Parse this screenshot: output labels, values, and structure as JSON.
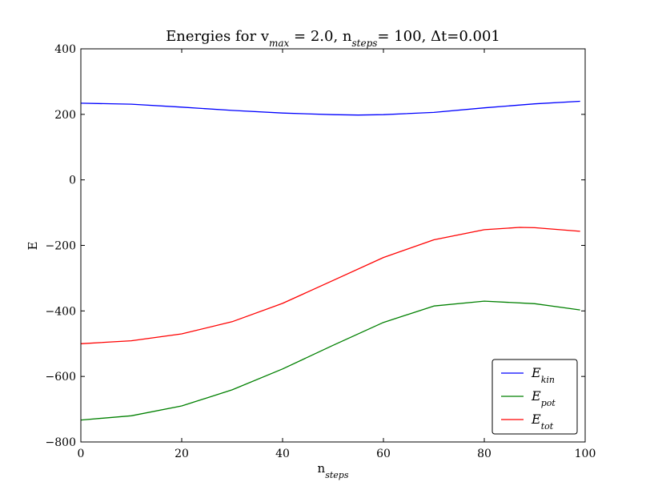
{
  "chart_data": {
    "type": "line",
    "title_parts": [
      {
        "text": "Energies for v",
        "sub": false
      },
      {
        "text": "max",
        "sub": true
      },
      {
        "text": " = 2.0, n",
        "sub": false
      },
      {
        "text": "steps",
        "sub": true
      },
      {
        "text": "= 100, Δt=0.001",
        "sub": false
      }
    ],
    "xlabel": {
      "main": "n",
      "sub": "steps"
    },
    "ylabel": "E",
    "xlim": [
      0,
      100
    ],
    "ylim": [
      -800,
      400
    ],
    "xticks": [
      0,
      20,
      40,
      60,
      80,
      100
    ],
    "yticks": [
      -800,
      -600,
      -400,
      -200,
      0,
      200,
      400
    ],
    "grid": false,
    "legend_position": "bottom-right",
    "series": [
      {
        "name": "E_kin",
        "legend": {
          "main": "E",
          "sub": "kin"
        },
        "color": "#0000ff",
        "x": [
          0,
          10,
          20,
          30,
          40,
          50,
          55,
          60,
          70,
          80,
          90,
          99
        ],
        "y": [
          234,
          231,
          222,
          212,
          204,
          199,
          198,
          199,
          206,
          220,
          232,
          240
        ]
      },
      {
        "name": "E_pot",
        "legend": {
          "main": "E",
          "sub": "pot"
        },
        "color": "#008000",
        "x": [
          0,
          10,
          20,
          30,
          40,
          50,
          60,
          70,
          80,
          90,
          99
        ],
        "y": [
          -733,
          -720,
          -690,
          -641,
          -577,
          -505,
          -435,
          -385,
          -370,
          -378,
          -397
        ]
      },
      {
        "name": "E_tot",
        "legend": {
          "main": "E",
          "sub": "tot"
        },
        "color": "#ff0000",
        "x": [
          0,
          10,
          20,
          30,
          40,
          50,
          60,
          70,
          80,
          87,
          90,
          99
        ],
        "y": [
          -500,
          -491,
          -470,
          -433,
          -377,
          -307,
          -237,
          -183,
          -152,
          -145,
          -146,
          -157
        ]
      }
    ]
  }
}
